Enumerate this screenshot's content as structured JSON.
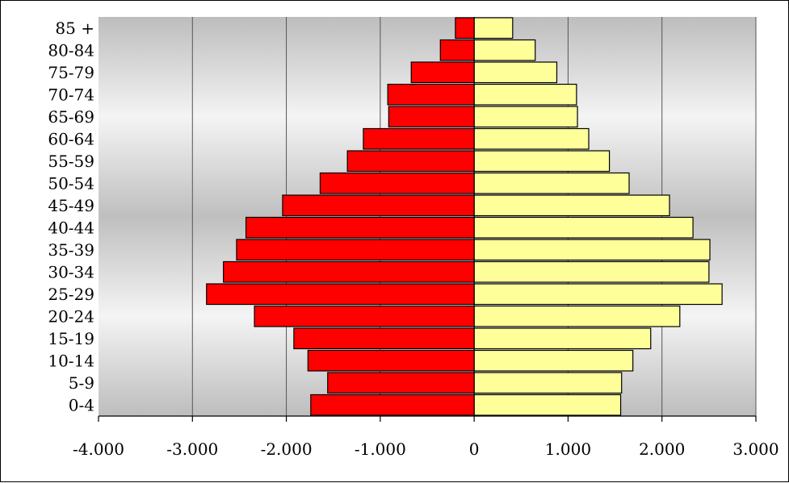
{
  "chart_data": {
    "type": "bar",
    "orientation": "horizontal",
    "layout": "population-pyramid",
    "title": "",
    "xlabel": "",
    "ylabel": "",
    "categories": [
      "0-4",
      "5-9",
      "10-14",
      "15-19",
      "20-24",
      "25-29",
      "30-34",
      "35-39",
      "40-44",
      "45-49",
      "50-54",
      "55-59",
      "60-64",
      "65-69",
      "70-74",
      "75-79",
      "80-84",
      "85 +"
    ],
    "series": [
      {
        "color": "#ff0000",
        "values": [
          -1740,
          -1560,
          -1770,
          -1920,
          -2340,
          -2850,
          -2670,
          -2530,
          -2430,
          -2040,
          -1640,
          -1350,
          -1180,
          -910,
          -920,
          -670,
          -360,
          -200
        ]
      },
      {
        "color": "#ffff99",
        "values": [
          1560,
          1570,
          1690,
          1880,
          2190,
          2640,
          2500,
          2510,
          2330,
          2080,
          1650,
          1440,
          1220,
          1100,
          1090,
          880,
          650,
          410
        ]
      }
    ],
    "xlim": [
      -4000,
      3000
    ],
    "xticks": [
      -4000,
      -3000,
      -2000,
      -1000,
      0,
      1000,
      2000,
      3000
    ],
    "xtick_labels": [
      "-4.000",
      "-3.000",
      "-2.000",
      "-1.000",
      "0",
      "1.000",
      "2.000",
      "3.000"
    ],
    "grid": true,
    "legend": "none",
    "plot_background": "gradient gray-white-gray"
  }
}
